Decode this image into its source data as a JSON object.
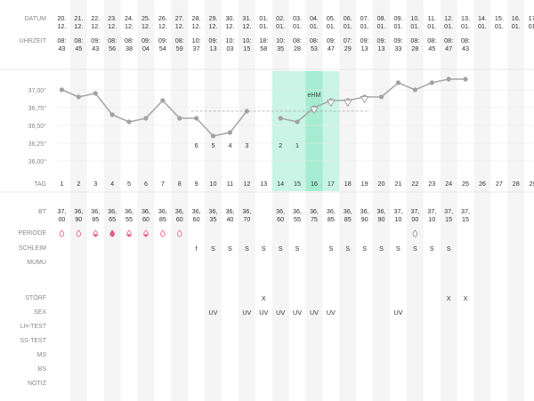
{
  "labels": {
    "datum": "DATUM",
    "uhrzeit": "UHRZEIT",
    "tag": "TAG",
    "bt": "BT",
    "periode": "PERIODE",
    "schleim": "SCHLEIM",
    "mumu": "MUMU",
    "stoerf": "STÖRF",
    "sex": "SEX",
    "lh": "LH-TEST",
    "ss": "SS-TEST",
    "ms": "MS",
    "bs": "BS",
    "notiz": "NOTIZ"
  },
  "columns": [
    {
      "day": "1",
      "date": [
        "20.",
        "12."
      ],
      "time": [
        "08:",
        "43"
      ],
      "bt": [
        "37,",
        "00"
      ],
      "periode": "light",
      "schleim": "",
      "stoerf": "",
      "sex": ""
    },
    {
      "day": "2",
      "date": [
        "21.",
        "12."
      ],
      "time": [
        "08:",
        "45"
      ],
      "bt": [
        "36,",
        "90"
      ],
      "periode": "light",
      "schleim": "",
      "stoerf": "",
      "sex": ""
    },
    {
      "day": "3",
      "date": [
        "22.",
        "12."
      ],
      "time": [
        "09:",
        "43"
      ],
      "bt": [
        "36,",
        "95"
      ],
      "periode": "medium",
      "schleim": "",
      "stoerf": "",
      "sex": ""
    },
    {
      "day": "4",
      "date": [
        "23.",
        "12."
      ],
      "time": [
        "08:",
        "56"
      ],
      "bt": [
        "36,",
        "65"
      ],
      "periode": "heavy",
      "schleim": "",
      "stoerf": "",
      "sex": ""
    },
    {
      "day": "5",
      "date": [
        "24.",
        "12."
      ],
      "time": [
        "08:",
        "38"
      ],
      "bt": [
        "36,",
        "55"
      ],
      "periode": "medium",
      "schleim": "",
      "stoerf": "",
      "sex": ""
    },
    {
      "day": "6",
      "date": [
        "25.",
        "12."
      ],
      "time": [
        "09:",
        "04"
      ],
      "bt": [
        "36,",
        "60"
      ],
      "periode": "medium",
      "schleim": "",
      "stoerf": "",
      "sex": ""
    },
    {
      "day": "7",
      "date": [
        "26.",
        "12."
      ],
      "time": [
        "09:",
        "54"
      ],
      "bt": [
        "36,",
        "85"
      ],
      "periode": "light",
      "schleim": "",
      "stoerf": "",
      "sex": ""
    },
    {
      "day": "8",
      "date": [
        "27.",
        "12."
      ],
      "time": [
        "08:",
        "59"
      ],
      "bt": [
        "36,",
        "60"
      ],
      "periode": "light",
      "schleim": "",
      "stoerf": "",
      "sex": ""
    },
    {
      "day": "9",
      "date": [
        "28.",
        "12."
      ],
      "time": [
        "10:",
        "37"
      ],
      "bt": [
        "36,",
        "60"
      ],
      "periode": "",
      "schleim": "f",
      "stoerf": "",
      "sex": ""
    },
    {
      "day": "10",
      "date": [
        "29.",
        "12."
      ],
      "time": [
        "09:",
        "13"
      ],
      "bt": [
        "36,",
        "35"
      ],
      "periode": "",
      "schleim": "S",
      "stoerf": "",
      "sex": "UV"
    },
    {
      "day": "11",
      "date": [
        "30.",
        "12."
      ],
      "time": [
        "10:",
        "03"
      ],
      "bt": [
        "36,",
        "40"
      ],
      "periode": "",
      "schleim": "S",
      "stoerf": "",
      "sex": ""
    },
    {
      "day": "12",
      "date": [
        "31.",
        "12."
      ],
      "time": [
        "10:",
        "15"
      ],
      "bt": [
        "36,",
        "70"
      ],
      "periode": "",
      "schleim": "S",
      "stoerf": "",
      "sex": "UV"
    },
    {
      "day": "13",
      "date": [
        "01.",
        "01."
      ],
      "time": [
        "18:",
        "58"
      ],
      "bt": [
        "",
        ""
      ],
      "periode": "",
      "schleim": "S",
      "stoerf": "X",
      "sex": "UV"
    },
    {
      "day": "14",
      "date": [
        "02.",
        "01."
      ],
      "time": [
        "10:",
        "35"
      ],
      "bt": [
        "36,",
        "60"
      ],
      "periode": "",
      "schleim": "S",
      "stoerf": "",
      "sex": "UV"
    },
    {
      "day": "15",
      "date": [
        "03.",
        "01."
      ],
      "time": [
        "08:",
        "28"
      ],
      "bt": [
        "36,",
        "55"
      ],
      "periode": "",
      "schleim": "S",
      "stoerf": "",
      "sex": "UV"
    },
    {
      "day": "16",
      "date": [
        "04.",
        "01."
      ],
      "time": [
        "08:",
        "53"
      ],
      "bt": [
        "36,",
        "75"
      ],
      "periode": "",
      "schleim": "",
      "stoerf": "",
      "sex": "UV"
    },
    {
      "day": "17",
      "date": [
        "05.",
        "01."
      ],
      "time": [
        "09:",
        "47"
      ],
      "bt": [
        "36,",
        "85"
      ],
      "periode": "",
      "schleim": "S",
      "stoerf": "",
      "sex": "UV"
    },
    {
      "day": "18",
      "date": [
        "06.",
        "01."
      ],
      "time": [
        "07:",
        "29"
      ],
      "bt": [
        "36,",
        "85"
      ],
      "periode": "",
      "schleim": "S",
      "stoerf": "",
      "sex": ""
    },
    {
      "day": "19",
      "date": [
        "07.",
        "01."
      ],
      "time": [
        "09:",
        "13"
      ],
      "bt": [
        "36,",
        "90"
      ],
      "periode": "",
      "schleim": "S",
      "stoerf": "",
      "sex": ""
    },
    {
      "day": "20",
      "date": [
        "08.",
        "01."
      ],
      "time": [
        "09:",
        "13"
      ],
      "bt": [
        "36,",
        "90"
      ],
      "periode": "",
      "schleim": "S",
      "stoerf": "",
      "sex": ""
    },
    {
      "day": "21",
      "date": [
        "09.",
        "01."
      ],
      "time": [
        "09:",
        "33"
      ],
      "bt": [
        "37,",
        "10"
      ],
      "periode": "",
      "schleim": "S",
      "stoerf": "",
      "sex": "UV"
    },
    {
      "day": "22",
      "date": [
        "10.",
        "01."
      ],
      "time": [
        "08:",
        "28"
      ],
      "bt": [
        "37,",
        "00"
      ],
      "periode": "spotting",
      "schleim": "S",
      "stoerf": "",
      "sex": ""
    },
    {
      "day": "23",
      "date": [
        "11.",
        "01."
      ],
      "time": [
        "08:",
        "45"
      ],
      "bt": [
        "37,",
        "10"
      ],
      "periode": "",
      "schleim": "S",
      "stoerf": "",
      "sex": ""
    },
    {
      "day": "24",
      "date": [
        "12.",
        "01."
      ],
      "time": [
        "08:",
        "47"
      ],
      "bt": [
        "37,",
        "15"
      ],
      "periode": "",
      "schleim": "S",
      "stoerf": "X",
      "sex": ""
    },
    {
      "day": "25",
      "date": [
        "13.",
        "01."
      ],
      "time": [
        "08:",
        "43"
      ],
      "bt": [
        "37,",
        "15"
      ],
      "periode": "",
      "schleim": "",
      "stoerf": "X",
      "sex": ""
    },
    {
      "day": "26",
      "date": [
        "14.",
        "01."
      ],
      "time": [
        "",
        ""
      ],
      "bt": [
        "",
        ""
      ],
      "periode": "",
      "schleim": "",
      "stoerf": "",
      "sex": ""
    },
    {
      "day": "27",
      "date": [
        "15.",
        "01."
      ],
      "time": [
        "",
        ""
      ],
      "bt": [
        "",
        ""
      ],
      "periode": "",
      "schleim": "",
      "stoerf": "",
      "sex": ""
    },
    {
      "day": "28",
      "date": [
        "16.",
        "01."
      ],
      "time": [
        "",
        ""
      ],
      "bt": [
        "",
        ""
      ],
      "periode": "",
      "schleim": "",
      "stoerf": "",
      "sex": ""
    },
    {
      "day": "29",
      "date": [
        "17.",
        "01."
      ],
      "time": [
        "",
        ""
      ],
      "bt": [
        "",
        ""
      ],
      "periode": "",
      "schleim": "",
      "stoerf": "",
      "sex": ""
    }
  ],
  "chart_data": {
    "type": "line",
    "title": "",
    "xlabel": "",
    "ylabel": "",
    "yticks": [
      "37,00°",
      "36,75°",
      "36,50°",
      "36,25°",
      "36,00°"
    ],
    "ylim": [
      35.98,
      37.12
    ],
    "coverline": 36.7,
    "coverline_days": [
      9,
      19
    ],
    "peak_label": "eHM",
    "fertile_window": [
      14,
      17
    ],
    "ovulation_day": 16,
    "series": [
      {
        "values": [
          37.0,
          36.9,
          36.95,
          36.65,
          36.55,
          36.6,
          36.85,
          36.6,
          36.6,
          36.35,
          36.4,
          36.7,
          null,
          36.6,
          36.55,
          36.75,
          36.85,
          36.85,
          36.9,
          36.9,
          37.1,
          37.0,
          37.1,
          37.15,
          37.15,
          null,
          null,
          null,
          null
        ]
      }
    ],
    "triangle_markers": [
      {
        "day": 16,
        "value": 36.72
      },
      {
        "day": 17,
        "value": 36.82
      },
      {
        "day": 18,
        "value": 36.82
      },
      {
        "day": 19,
        "value": 36.87
      }
    ],
    "count_labels": [
      {
        "day": 9,
        "text": "6"
      },
      {
        "day": 10,
        "text": "5"
      },
      {
        "day": 11,
        "text": "4"
      },
      {
        "day": 12,
        "text": "3"
      },
      {
        "day": 14,
        "text": "2"
      },
      {
        "day": 15,
        "text": "1"
      }
    ],
    "colors": {
      "line": "#a8a8a8",
      "point": "#a2a2a2",
      "fertile": "#c9f4e6",
      "ovulation": "#a5ecd2",
      "bleeding": "#e65a86",
      "column_shade": "#f5f5f5"
    }
  }
}
